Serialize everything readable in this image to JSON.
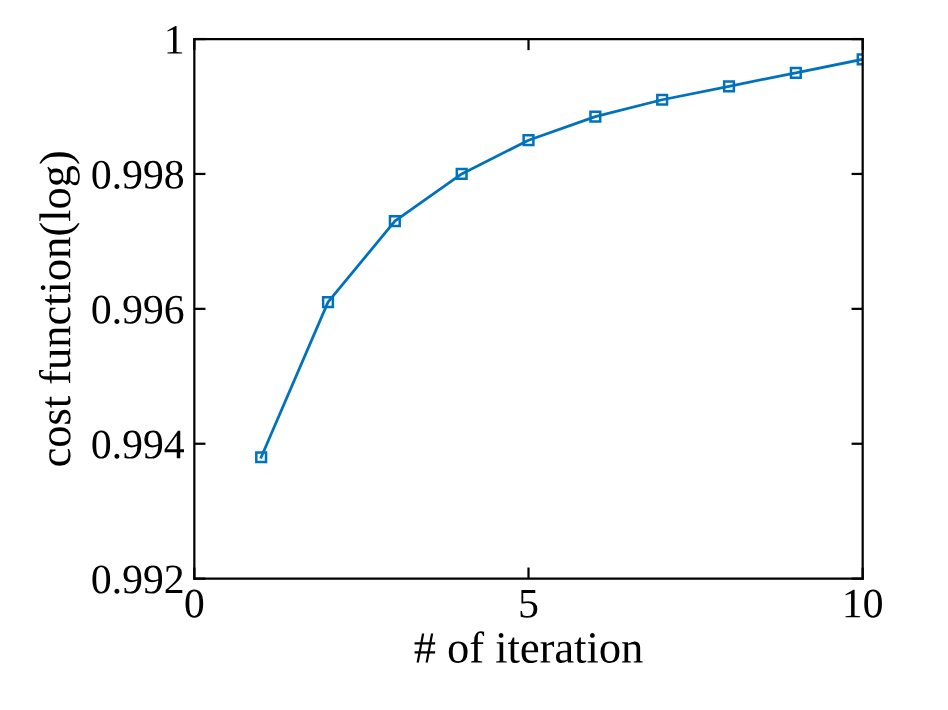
{
  "chart_data": {
    "type": "line",
    "xlabel": "# of iteration",
    "ylabel": "cost function(log)",
    "x": [
      1,
      2,
      3,
      4,
      5,
      6,
      7,
      8,
      9,
      10
    ],
    "series": [
      {
        "color": "#0072bd",
        "values": [
          0.9938,
          0.9961,
          0.9973,
          0.998,
          0.9985,
          0.99885,
          0.9991,
          0.9993,
          0.9995,
          0.9997
        ]
      }
    ],
    "xlim": [
      0,
      10
    ],
    "ylim": [
      0.992,
      1
    ],
    "xticks": [
      0,
      5,
      10
    ],
    "yticks": [
      0.992,
      0.994,
      0.996,
      0.998,
      1
    ],
    "marker": "square",
    "line_style": "solid",
    "grid": false,
    "legend": false
  }
}
